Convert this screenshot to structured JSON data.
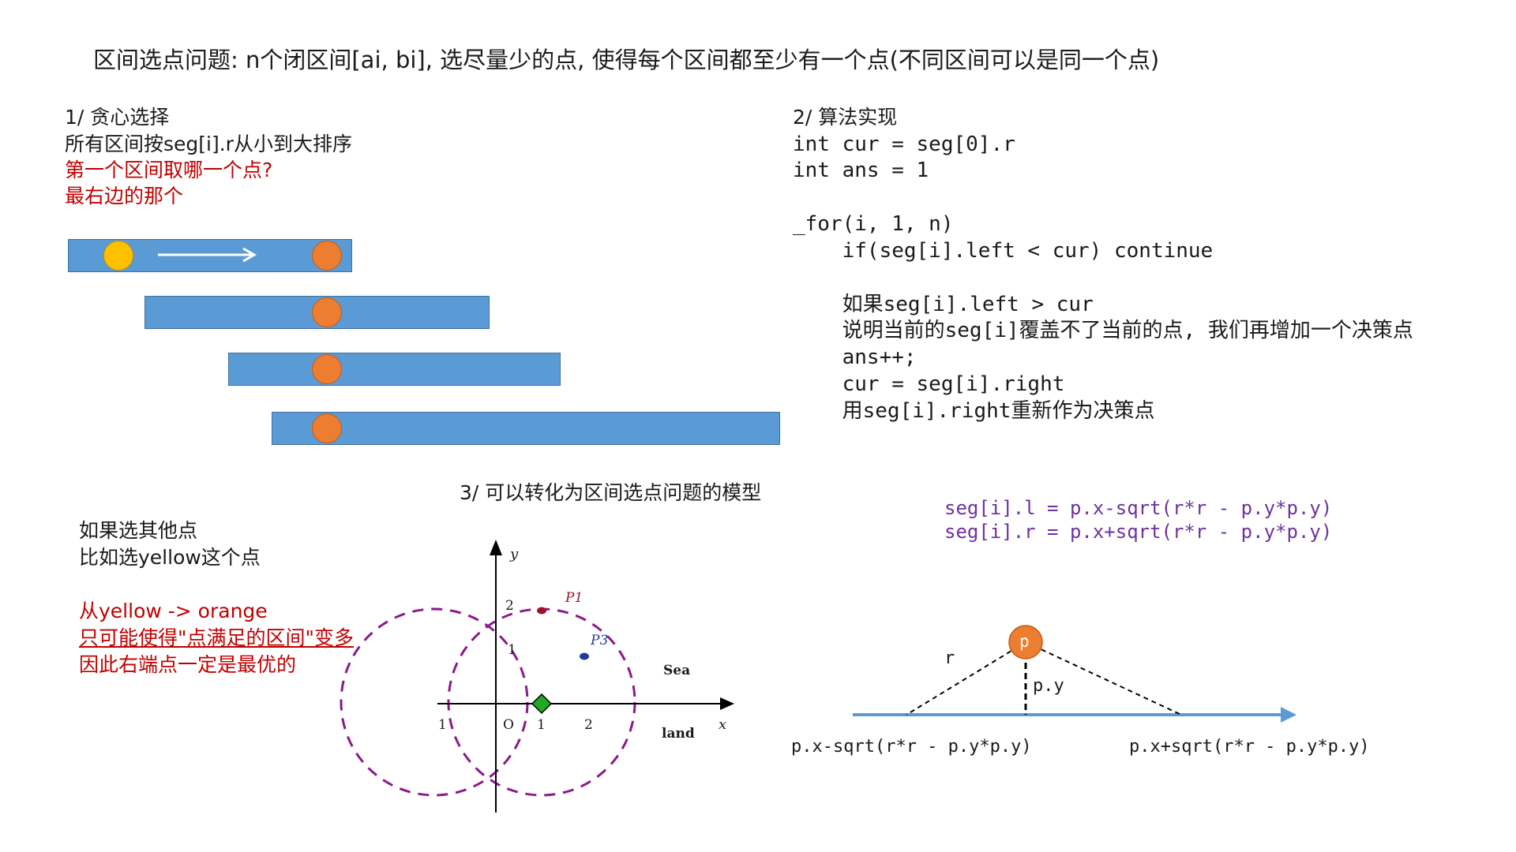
{
  "title": "区间选点问题: n个闭区间[ai, bi], 选尽量少的点, 使得每个区间都至少有一个点(不同区间可以是同一个点)",
  "section1": {
    "heading": "1/ 贪心选择",
    "line1": "所有区间按seg[i].r从小到大排序",
    "question": "第一个区间取哪一个点?",
    "answer": "最右边的那个"
  },
  "section2": {
    "heading": "2/ 算法实现",
    "code_lines": [
      "int cur = seg[0].r",
      "int ans = 1",
      "_for(i, 1, n)",
      "    if(seg[i].left < cur) continue",
      "    如果seg[i].left > cur",
      "    说明当前的seg[i]覆盖不了当前的点, 我们再增加一个决策点",
      "    ans++;",
      "    cur = seg[i].right",
      "    用seg[i].right重新作为决策点"
    ]
  },
  "note": {
    "line1": "如果选其他点",
    "line2": "比如选yellow这个点",
    "red1": "从yellow -> orange",
    "red2": "只可能使得\"点满足的区间\"变多",
    "red3": "因此右端点一定是最优的"
  },
  "section3": {
    "heading": "3/ 可以转化为区间选点问题的模型",
    "formula_l": "seg[i].l = p.x-sqrt(r*r - p.y*p.y)",
    "formula_r": "seg[i].r = p.x+sqrt(r*r - p.y*p.y)"
  },
  "coord": {
    "y_label": "y",
    "x_label": "x",
    "origin": "O",
    "tick_x1": "1",
    "tick_x2": "2",
    "tick_xneg": "1",
    "tick_y1": "1",
    "tick_y2": "2",
    "p1": "P1",
    "p3": "P3",
    "sea": "Sea",
    "land": "land"
  },
  "triangle": {
    "point": "p",
    "r_label": "r",
    "py_label": "p.y",
    "left_label": "p.x-sqrt(r*r - p.y*p.y)",
    "right_label": "p.x+sqrt(r*r - p.y*p.y)"
  },
  "colors": {
    "bar_fill": "#5b9bd5",
    "point_orange": "#ed7d31",
    "point_yellow": "#ffc000",
    "emphasis_red": "#c00000",
    "formula_purple": "#7030a0",
    "circle_dashes": "#8b1a8b"
  }
}
